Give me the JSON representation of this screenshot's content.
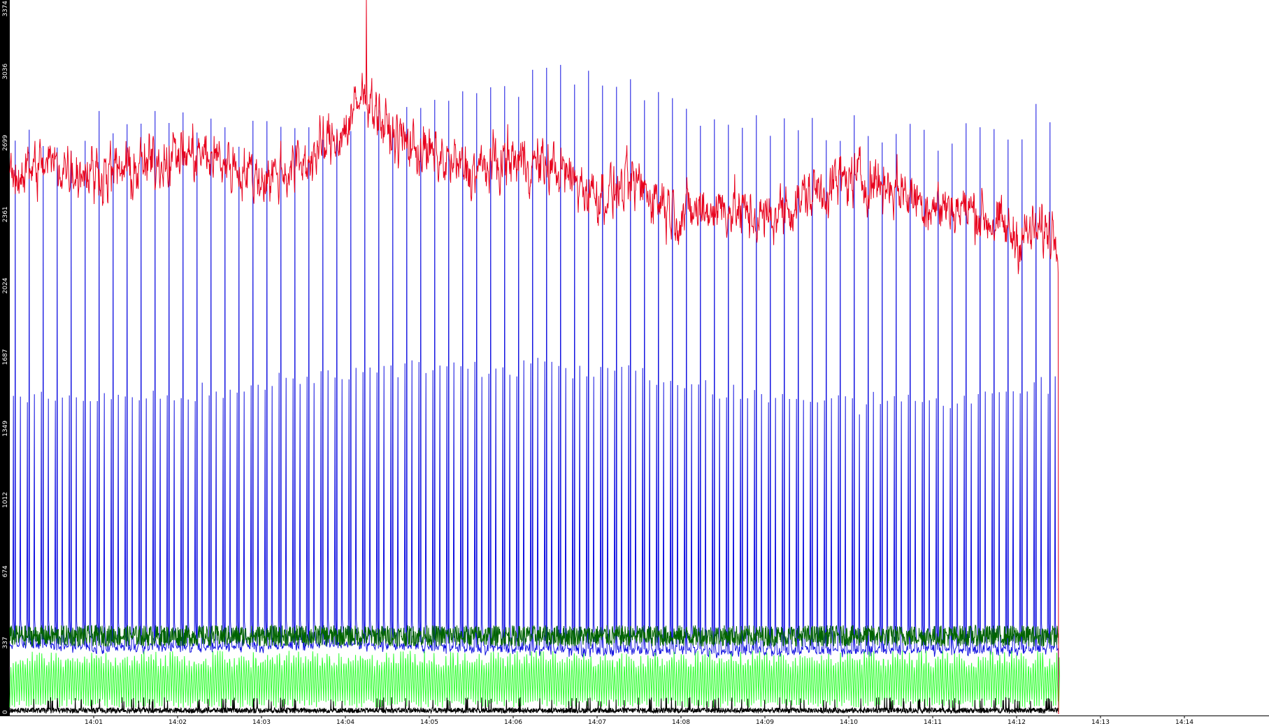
{
  "chart_data": {
    "type": "line",
    "title": "",
    "xlabel": "",
    "ylabel": "",
    "ylim": [
      0,
      3374
    ],
    "y_ticks": [
      "0",
      "337",
      "674",
      "1012",
      "1349",
      "1687",
      "2024",
      "2361",
      "2699",
      "3036",
      "3374"
    ],
    "x_ticks": [
      "14:01",
      "14:02",
      "14:03",
      "14:04",
      "14:05",
      "14:06",
      "14:07",
      "14:08",
      "14:09",
      "14:10",
      "14:11",
      "14:12",
      "14:13",
      "14:14"
    ],
    "x_range_minutes": [
      14.0,
      14.2333
    ],
    "data_end_time": "14:12:30",
    "grid": false,
    "legend": "none",
    "series": [
      {
        "color": "#e8001c",
        "style": "noisy-line",
        "trend_keypoints": [
          {
            "t": "14:00:00",
            "y": 2550
          },
          {
            "t": "14:00:30",
            "y": 2600
          },
          {
            "t": "14:01:00",
            "y": 2560
          },
          {
            "t": "14:01:30",
            "y": 2570
          },
          {
            "t": "14:02:00",
            "y": 2650
          },
          {
            "t": "14:02:30",
            "y": 2620
          },
          {
            "t": "14:03:00",
            "y": 2530
          },
          {
            "t": "14:03:30",
            "y": 2600
          },
          {
            "t": "14:04:00",
            "y": 2760
          },
          {
            "t": "14:04:15",
            "y": 2950
          },
          {
            "t": "14:04:30",
            "y": 2750
          },
          {
            "t": "14:05:00",
            "y": 2640
          },
          {
            "t": "14:05:30",
            "y": 2560
          },
          {
            "t": "14:06:00",
            "y": 2620
          },
          {
            "t": "14:06:30",
            "y": 2580
          },
          {
            "t": "14:07:00",
            "y": 2450
          },
          {
            "t": "14:07:30",
            "y": 2500
          },
          {
            "t": "14:08:00",
            "y": 2360
          },
          {
            "t": "14:08:30",
            "y": 2400
          },
          {
            "t": "14:09:00",
            "y": 2330
          },
          {
            "t": "14:09:30",
            "y": 2450
          },
          {
            "t": "14:10:00",
            "y": 2530
          },
          {
            "t": "14:10:30",
            "y": 2500
          },
          {
            "t": "14:11:00",
            "y": 2400
          },
          {
            "t": "14:11:30",
            "y": 2380
          },
          {
            "t": "14:12:00",
            "y": 2250
          },
          {
            "t": "14:12:30",
            "y": 2300
          }
        ],
        "noise_amplitude": 160,
        "peak": {
          "t": "14:04:15",
          "y": 3374
        }
      },
      {
        "color": "#1010e0",
        "style": "periodic-spikes",
        "spike_period_seconds": 5,
        "baseline": 310,
        "secondary_peak_range": [
          1350,
          1700
        ],
        "primary_peak_range": [
          2500,
          3040
        ],
        "keypoints": [
          {
            "t": "14:00:00",
            "baseline": 330,
            "secondary": 1480,
            "primary": 2700
          },
          {
            "t": "14:01:30",
            "baseline": 310,
            "secondary": 1480,
            "primary": 2800
          },
          {
            "t": "14:03:00",
            "baseline": 320,
            "secondary": 1550,
            "primary": 2780
          },
          {
            "t": "14:04:00",
            "baseline": 330,
            "secondary": 1610,
            "primary": 2800
          },
          {
            "t": "14:05:30",
            "baseline": 310,
            "secondary": 1640,
            "primary": 2960
          },
          {
            "t": "14:07:00",
            "baseline": 300,
            "secondary": 1640,
            "primary": 3020
          },
          {
            "t": "14:08:30",
            "baseline": 300,
            "secondary": 1520,
            "primary": 2800
          },
          {
            "t": "14:10:00",
            "baseline": 300,
            "secondary": 1480,
            "primary": 2760
          },
          {
            "t": "14:11:30",
            "baseline": 300,
            "secondary": 1480,
            "primary": 2720
          },
          {
            "t": "14:12:30",
            "baseline": 310,
            "secondary": 1590,
            "primary": 2780
          }
        ]
      },
      {
        "color": "#006400",
        "style": "noisy-band",
        "band_range": [
          320,
          420
        ]
      },
      {
        "color": "#33ff33",
        "style": "oscillation",
        "range": [
          30,
          300
        ],
        "period_seconds": 1.7
      },
      {
        "color": "#000000",
        "style": "noisy-floor",
        "range": [
          5,
          80
        ]
      }
    ]
  }
}
